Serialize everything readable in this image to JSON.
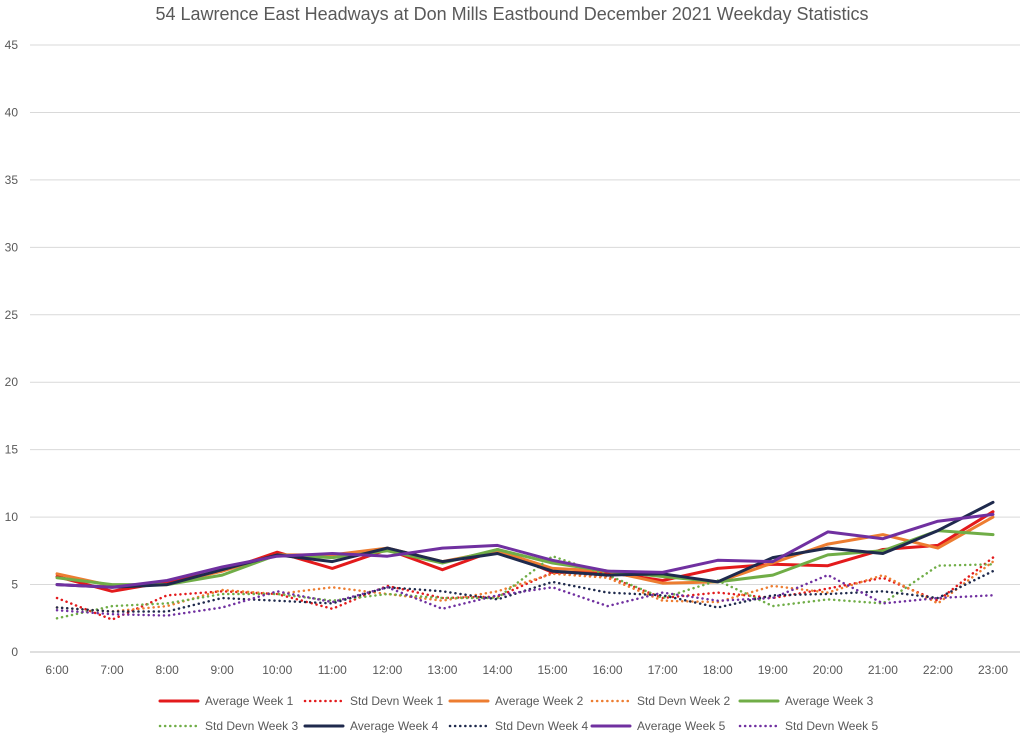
{
  "chart_data": {
    "type": "line",
    "title": "54 Lawrence East Headways at Don Mills Eastbound December 2021 Weekday Statistics",
    "xlabel": "",
    "ylabel": "",
    "ylim": [
      0,
      45
    ],
    "y_ticks": [
      "0",
      "5",
      "10",
      "15",
      "20",
      "25",
      "30",
      "35",
      "40",
      "45"
    ],
    "grid": true,
    "legend_position": "bottom",
    "x": [
      "6:00",
      "7:00",
      "8:00",
      "9:00",
      "10:00",
      "11:00",
      "12:00",
      "13:00",
      "14:00",
      "15:00",
      "16:00",
      "17:00",
      "18:00",
      "19:00",
      "20:00",
      "21:00",
      "22:00",
      "23:00"
    ],
    "series": [
      {
        "name": "Average Week 1",
        "color": "#e31a1c",
        "style": "solid",
        "values": [
          5.6,
          4.5,
          5.2,
          6.0,
          7.4,
          6.2,
          7.6,
          6.1,
          7.6,
          5.9,
          5.9,
          5.3,
          6.2,
          6.5,
          6.4,
          7.6,
          7.9,
          10.4
        ]
      },
      {
        "name": "Std Devn Week 1",
        "color": "#e31a1c",
        "style": "dotted",
        "values": [
          4.0,
          2.4,
          4.2,
          4.5,
          4.3,
          3.2,
          4.9,
          4.0,
          4.1,
          5.9,
          5.6,
          4.0,
          4.4,
          4.0,
          4.7,
          5.5,
          3.8,
          7.0
        ]
      },
      {
        "name": "Average Week 2",
        "color": "#ed7d31",
        "style": "solid",
        "values": [
          5.8,
          4.9,
          5.0,
          6.0,
          7.2,
          7.2,
          7.7,
          6.7,
          7.5,
          6.2,
          6.0,
          5.1,
          5.2,
          6.6,
          8.0,
          8.7,
          7.7,
          10.0
        ]
      },
      {
        "name": "Std Devn Week 2",
        "color": "#ed7d31",
        "style": "dotted",
        "values": [
          3.3,
          3.0,
          3.4,
          4.6,
          4.3,
          4.8,
          4.3,
          3.8,
          4.5,
          5.8,
          5.5,
          3.8,
          3.7,
          4.9,
          4.4,
          5.7,
          3.6,
          6.7
        ]
      },
      {
        "name": "Average Week 3",
        "color": "#70ad47",
        "style": "solid",
        "values": [
          5.5,
          5.0,
          5.0,
          5.7,
          7.2,
          7.0,
          7.5,
          6.6,
          7.6,
          6.6,
          6.0,
          5.6,
          5.2,
          5.7,
          7.2,
          7.5,
          9.0,
          8.7
        ]
      },
      {
        "name": "Std Devn Week 3",
        "color": "#70ad47",
        "style": "dotted",
        "values": [
          2.5,
          3.4,
          3.6,
          4.3,
          4.3,
          3.8,
          4.3,
          4.0,
          4.0,
          7.1,
          5.7,
          4.0,
          5.3,
          3.4,
          3.9,
          3.6,
          6.4,
          6.5
        ]
      },
      {
        "name": "Average Week 4",
        "color": "#1f2a4d",
        "style": "solid",
        "values": [
          5.0,
          4.8,
          5.0,
          6.1,
          7.2,
          6.7,
          7.7,
          6.7,
          7.3,
          6.0,
          5.7,
          5.8,
          5.2,
          7.0,
          7.7,
          7.3,
          9.0,
          11.1
        ]
      },
      {
        "name": "Std Devn Week 4",
        "color": "#1f2a4d",
        "style": "dotted",
        "values": [
          3.3,
          3.0,
          3.0,
          4.0,
          3.8,
          3.6,
          4.8,
          4.5,
          3.9,
          5.2,
          4.4,
          4.2,
          3.3,
          4.2,
          4.3,
          4.5,
          4.0,
          6.0
        ]
      },
      {
        "name": "Average Week 5",
        "color": "#7030a0",
        "style": "solid",
        "values": [
          5.0,
          4.8,
          5.3,
          6.3,
          7.1,
          7.3,
          7.1,
          7.7,
          7.9,
          6.8,
          6.0,
          5.9,
          6.8,
          6.7,
          8.9,
          8.4,
          9.7,
          10.2
        ]
      },
      {
        "name": "Std Devn Week 5",
        "color": "#7030a0",
        "style": "dotted",
        "values": [
          3.1,
          2.8,
          2.7,
          3.3,
          4.5,
          3.7,
          4.8,
          3.2,
          4.2,
          4.8,
          3.4,
          4.4,
          3.8,
          4.0,
          5.7,
          3.6,
          4.0,
          4.2
        ]
      }
    ]
  }
}
